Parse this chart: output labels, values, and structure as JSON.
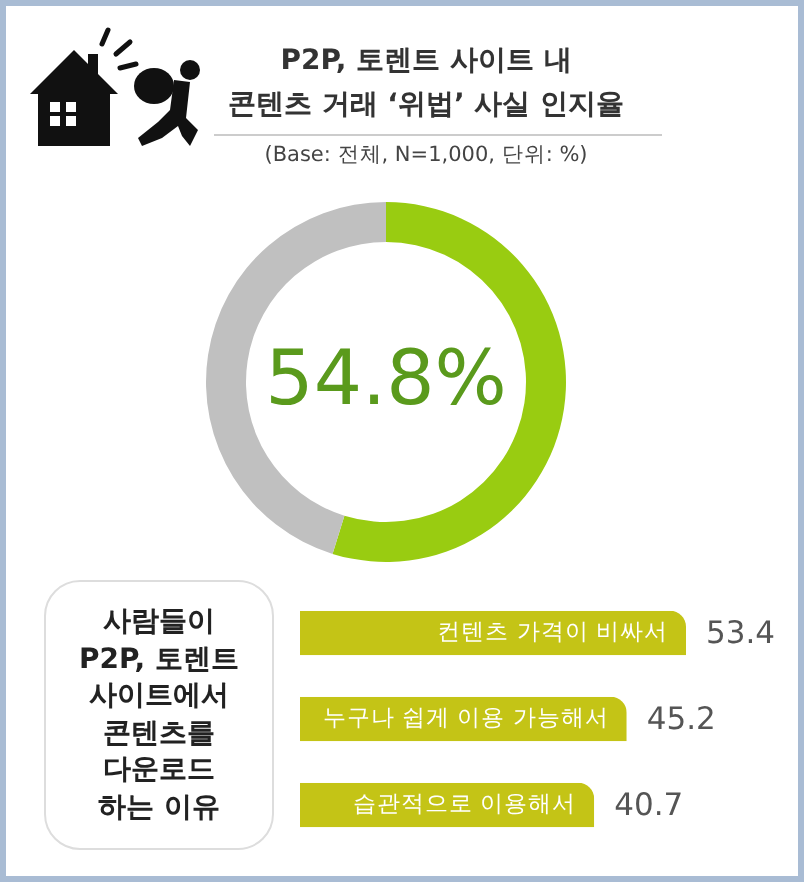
{
  "chart_data": [
    {
      "type": "donut",
      "title": "P2P, 토렌트 사이트 내\n콘텐츠 거래 ‘위법’ 사실 인지율",
      "subtitle": "(Base: 전체, N=1,000, 단위: %)",
      "categories": [
        null,
        null
      ],
      "values": [
        54.8,
        45.2
      ],
      "colors": [
        "#99cc11",
        "#c0c0c0"
      ],
      "value_labels": [
        "54.8%",
        null
      ]
    },
    {
      "type": "bar",
      "title": "사람들이\nP2P, 토렌트\n사이트에서\n콘텐츠를\n다운로드\n하는 이유",
      "orientation": "horizontal",
      "categories": [
        "컨텐츠 가격이 비싸서",
        "누구나 쉽게 이용 가능해서",
        "습관적으로 이용해서"
      ],
      "values": [
        53.4,
        45.2,
        40.7
      ],
      "color": "#c4c416",
      "data_labels": true
    }
  ]
}
